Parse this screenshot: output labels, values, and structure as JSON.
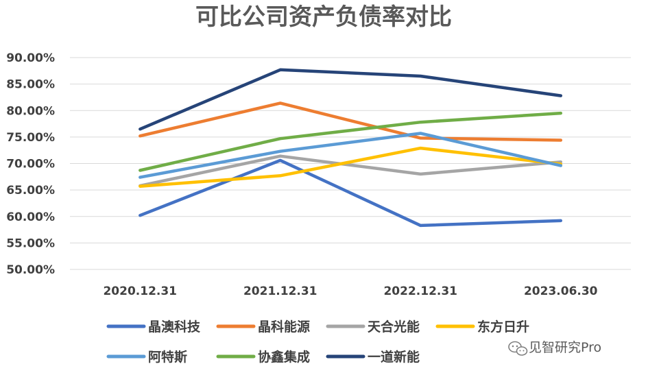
{
  "chart_data": {
    "type": "line",
    "title": "可比公司资产负债率对比",
    "xlabel": "",
    "ylabel": "",
    "categories": [
      "2020.12.31",
      "2021.12.31",
      "2022.12.31",
      "2023.06.30"
    ],
    "ylim": [
      50,
      90
    ],
    "yticks": [
      "50.00%",
      "55.00%",
      "60.00%",
      "65.00%",
      "70.00%",
      "75.00%",
      "80.00%",
      "85.00%",
      "90.00%"
    ],
    "grid": true,
    "legend_position": "bottom",
    "series": [
      {
        "name": "晶澳科技",
        "color": "#4472C4",
        "values": [
          60.2,
          70.6,
          58.3,
          59.2
        ]
      },
      {
        "name": "晶科能源",
        "color": "#ED7D31",
        "values": [
          75.2,
          81.4,
          74.8,
          74.4
        ]
      },
      {
        "name": "天合光能",
        "color": "#A5A5A5",
        "values": [
          65.8,
          71.4,
          68.0,
          70.3
        ]
      },
      {
        "name": "东方日升",
        "color": "#FFC000",
        "values": [
          65.7,
          67.7,
          72.9,
          69.9
        ]
      },
      {
        "name": "阿特斯",
        "color": "#5B9BD5",
        "values": [
          67.4,
          72.3,
          75.7,
          69.6
        ]
      },
      {
        "name": "协鑫集成",
        "color": "#70AD47",
        "values": [
          68.7,
          74.7,
          77.8,
          79.5
        ]
      },
      {
        "name": "一道新能",
        "color": "#264478",
        "values": [
          76.5,
          87.7,
          86.5,
          82.8
        ]
      }
    ]
  },
  "watermark": {
    "text": "见智研究Pro",
    "icon": "wechat-icon"
  }
}
